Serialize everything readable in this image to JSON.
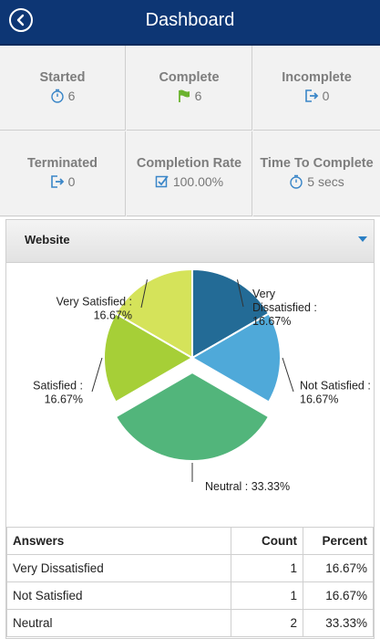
{
  "header": {
    "title": "Dashboard",
    "back_icon": "back-arrow-icon"
  },
  "stats": [
    {
      "label": "Started",
      "value": "6",
      "icon": "stopwatch-icon"
    },
    {
      "label": "Complete",
      "value": "6",
      "icon": "flag-icon"
    },
    {
      "label": "Incomplete",
      "value": "0",
      "icon": "exit-icon"
    },
    {
      "label": "Terminated",
      "value": "0",
      "icon": "exit-icon"
    },
    {
      "label": "Completion Rate",
      "value": "100.00%",
      "icon": "checkbox-icon"
    },
    {
      "label": "Time To Complete",
      "value": "5 secs",
      "icon": "stopwatch-icon"
    }
  ],
  "panel": {
    "title": "Website",
    "toggle_icon": "caret-down-icon"
  },
  "chart_data": {
    "type": "pie",
    "slices": [
      {
        "name": "Very Dissatisfied",
        "value": 16.67,
        "label": "Very Dissatisfied : 16.67%",
        "color": "#236b96"
      },
      {
        "name": "Not Satisfied",
        "value": 16.67,
        "label": "Not Satisfied : 16.67%",
        "color": "#4fa9d9"
      },
      {
        "name": "Neutral",
        "value": 33.33,
        "label": "Neutral : 33.33%",
        "color": "#52b57b",
        "exploded": true
      },
      {
        "name": "Satisfied",
        "value": 16.67,
        "label": "Satisfied : 16.67%",
        "color": "#a6cf37"
      },
      {
        "name": "Very Satisfied",
        "value": 16.67,
        "label": "Very Satisfied : 16.67%",
        "color": "#d5e35a"
      }
    ]
  },
  "table": {
    "headers": [
      "Answers",
      "Count",
      "Percent"
    ],
    "rows": [
      [
        "Very Dissatisfied",
        "1",
        "16.67%"
      ],
      [
        "Not Satisfied",
        "1",
        "16.67%"
      ],
      [
        "Neutral",
        "2",
        "33.33%"
      ]
    ]
  },
  "colors": {
    "header_bg": "#0d3674",
    "stat_icon": "#3a86c8",
    "flag": "#6bb32e"
  }
}
